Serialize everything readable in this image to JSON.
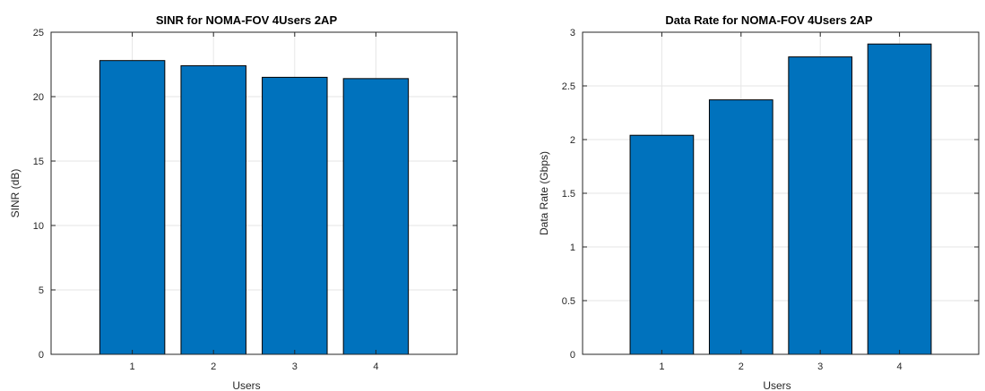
{
  "chart_data": [
    {
      "type": "bar",
      "title": "SINR for NOMA-FOV 4Users 2AP",
      "xlabel": "Users",
      "ylabel": "SINR (dB)",
      "categories": [
        "1",
        "2",
        "3",
        "4"
      ],
      "values": [
        22.8,
        22.4,
        21.5,
        21.4
      ],
      "ylim": [
        0,
        25
      ],
      "yticks": [
        "0",
        "5",
        "10",
        "15",
        "20",
        "25"
      ],
      "grid": true,
      "bar_color": "#0072BD"
    },
    {
      "type": "bar",
      "title": "Data Rate for NOMA-FOV 4Users 2AP",
      "xlabel": "Users",
      "ylabel": "Data Rate (Gbps)",
      "categories": [
        "1",
        "2",
        "3",
        "4"
      ],
      "values": [
        2.04,
        2.37,
        2.77,
        2.89
      ],
      "ylim": [
        0,
        3
      ],
      "yticks": [
        "0",
        "0.5",
        "1",
        "1.5",
        "2",
        "2.5",
        "3"
      ],
      "grid": true,
      "bar_color": "#0072BD"
    }
  ]
}
